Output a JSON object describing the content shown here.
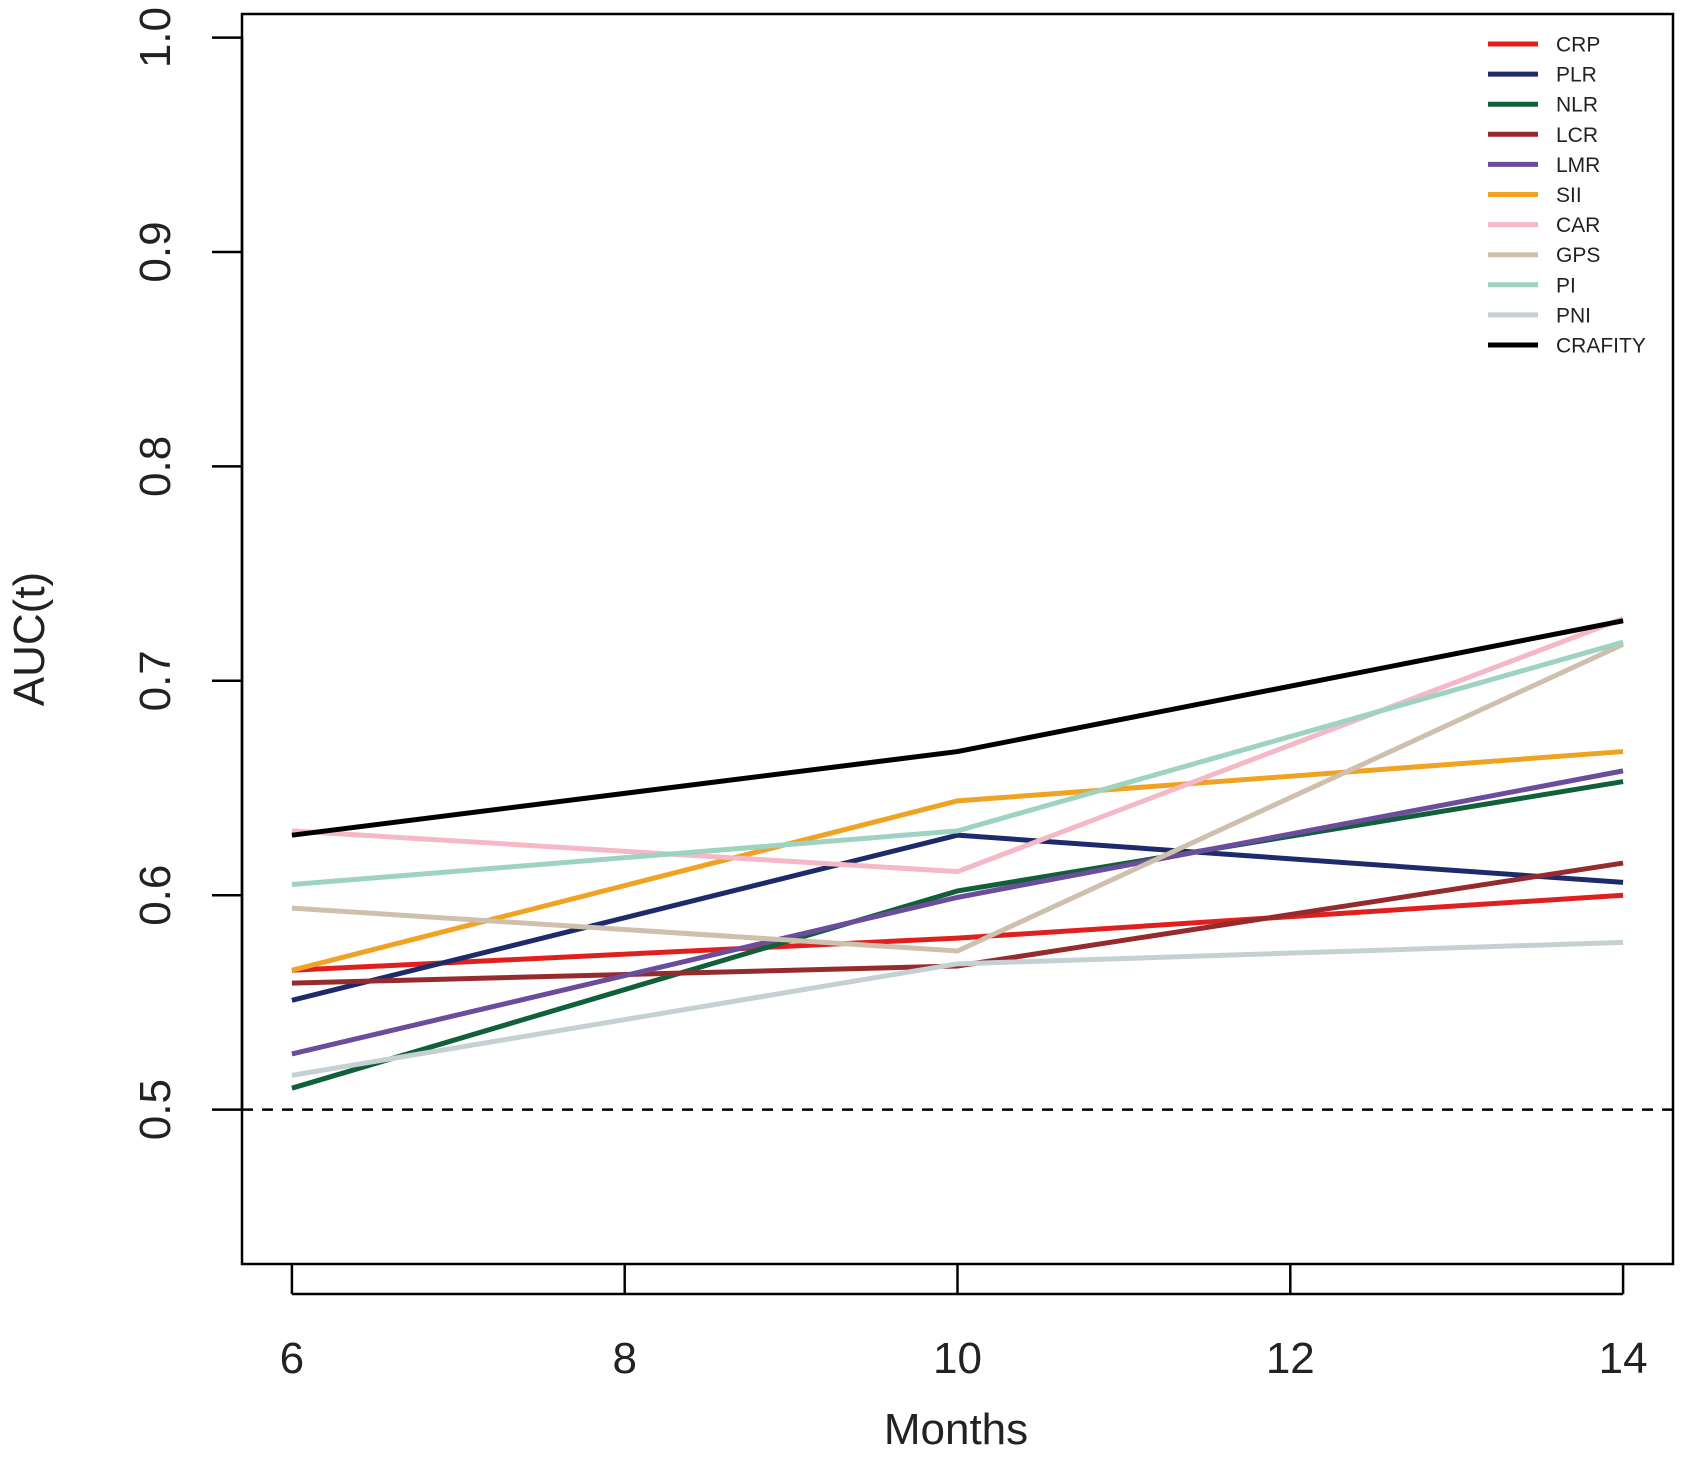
{
  "chart_data": {
    "type": "line",
    "title": "",
    "xlabel": "Months",
    "ylabel": "AUC(t)",
    "x": [
      6,
      10,
      14
    ],
    "xticks": [
      6,
      8,
      10,
      12,
      14
    ],
    "xtick_labels": [
      "6",
      "8",
      "10",
      "12",
      "14"
    ],
    "xlim": [
      5.7,
      14.3
    ],
    "yticks": [
      0.5,
      0.6,
      0.7,
      0.8,
      0.9,
      1.0
    ],
    "ytick_labels": [
      "0.5",
      "0.6",
      "0.7",
      "0.8",
      "0.9",
      "1.0"
    ],
    "ylim": [
      0.428,
      1.011
    ],
    "reference_line": {
      "y": 0.5,
      "style": "dashed"
    },
    "legend_position": "top-right",
    "grid": false,
    "series": [
      {
        "name": "CRP",
        "color": "#e0201f",
        "values": [
          0.565,
          0.58,
          0.6
        ]
      },
      {
        "name": "PLR",
        "color": "#1e2b6b",
        "values": [
          0.551,
          0.628,
          0.606
        ]
      },
      {
        "name": "NLR",
        "color": "#10613a",
        "values": [
          0.51,
          0.602,
          0.653
        ]
      },
      {
        "name": "LCR",
        "color": "#962b2e",
        "values": [
          0.559,
          0.567,
          0.615
        ]
      },
      {
        "name": "LMR",
        "color": "#6c4c9c",
        "values": [
          0.526,
          0.599,
          0.658
        ]
      },
      {
        "name": "SII",
        "color": "#f0a323",
        "values": [
          0.565,
          0.644,
          0.667
        ]
      },
      {
        "name": "CAR",
        "color": "#f5b8c6",
        "values": [
          0.63,
          0.611,
          0.729
        ]
      },
      {
        "name": "GPS",
        "color": "#cfc0ae",
        "values": [
          0.594,
          0.574,
          0.717
        ]
      },
      {
        "name": "PI",
        "color": "#9dd3c0",
        "values": [
          0.605,
          0.63,
          0.718
        ]
      },
      {
        "name": "PNI",
        "color": "#c4d0d2",
        "values": [
          0.516,
          0.568,
          0.578
        ]
      },
      {
        "name": "CRAFITY",
        "color": "#000000",
        "values": [
          0.628,
          0.667,
          0.728
        ]
      }
    ]
  }
}
